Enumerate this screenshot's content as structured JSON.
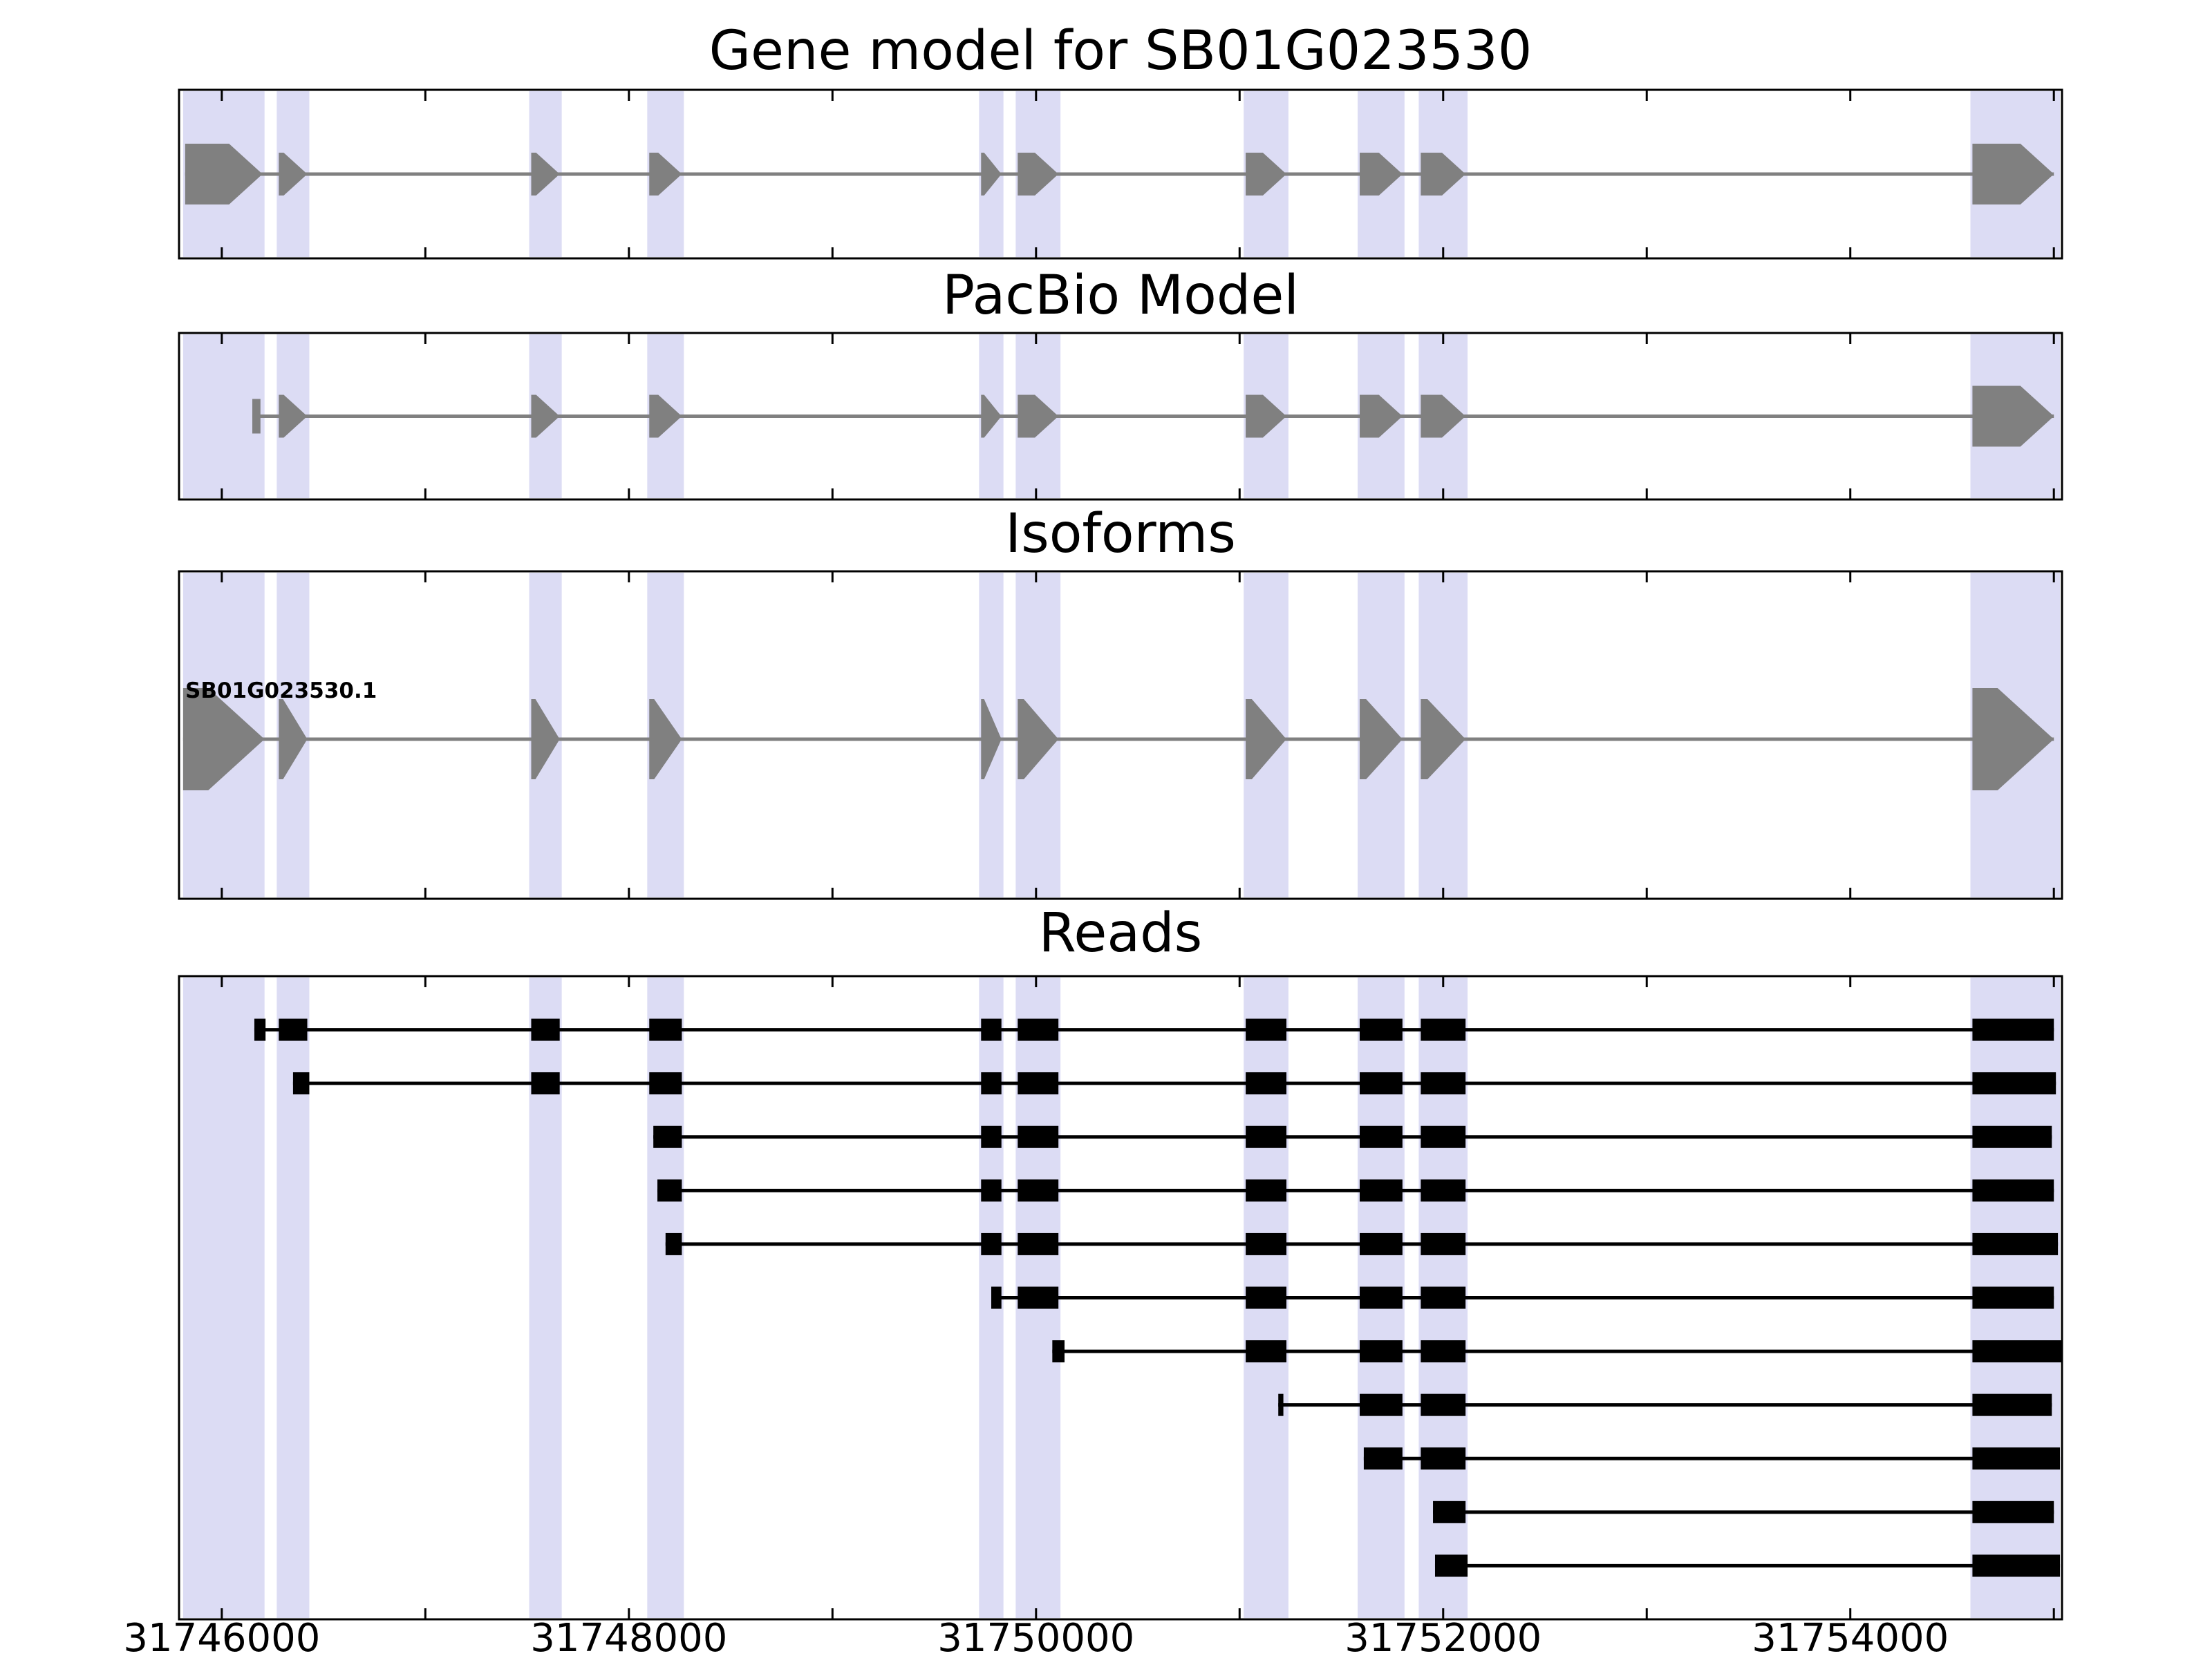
{
  "chart_data": {
    "type": "gene-model-tracks",
    "title": "Gene model for SB01G023530",
    "xlabel": "",
    "strand": "+",
    "axis": {
      "xmin": 31745790,
      "xmax": 31755040,
      "tick_values": [
        31746000,
        31748000,
        31750000,
        31752000,
        31754000
      ],
      "tick_labels": [
        "31746000",
        "31748000",
        "31750000",
        "31752000",
        "31754000"
      ],
      "minor_tick_step": 1000
    },
    "colors": {
      "highlight": "#dcdcf4",
      "exon": "#808080",
      "intron_line": "#808080",
      "read": "#000000",
      "border": "#000000",
      "background": "#ffffff"
    },
    "panels": [
      {
        "title": "Gene model for SB01G023530"
      },
      {
        "title": "PacBio Model"
      },
      {
        "title": "Isoforms",
        "label": "SB01G023530.1"
      },
      {
        "title": "Reads"
      }
    ],
    "highlights": [
      [
        31745810,
        31746210
      ],
      [
        31746270,
        31746430
      ],
      [
        31747510,
        31747670
      ],
      [
        31748090,
        31748270
      ],
      [
        31749720,
        31749840
      ],
      [
        31749900,
        31750120
      ],
      [
        31751020,
        31751240
      ],
      [
        31751580,
        31751810
      ],
      [
        31751880,
        31752120
      ],
      [
        31754590,
        31755030
      ]
    ],
    "gene_exons": [
      [
        31745820,
        31746200,
        1
      ],
      [
        31746280,
        31746420,
        0
      ],
      [
        31747520,
        31747660,
        0
      ],
      [
        31748100,
        31748260,
        0
      ],
      [
        31749730,
        31749830,
        0
      ],
      [
        31749910,
        31750110,
        0
      ],
      [
        31751030,
        31751230,
        0
      ],
      [
        31751590,
        31751800,
        0
      ],
      [
        31751890,
        31752110,
        0
      ],
      [
        31754600,
        31755000,
        1
      ]
    ],
    "pacbio_exons": [
      [
        31746150,
        31746190,
        2
      ],
      [
        31746280,
        31746420,
        0
      ],
      [
        31747520,
        31747660,
        0
      ],
      [
        31748100,
        31748260,
        0
      ],
      [
        31749730,
        31749830,
        0
      ],
      [
        31749910,
        31750110,
        0
      ],
      [
        31751030,
        31751230,
        0
      ],
      [
        31751590,
        31751800,
        0
      ],
      [
        31751890,
        31752110,
        0
      ],
      [
        31754600,
        31755000,
        1
      ]
    ],
    "isoform_exons": [
      [
        31745810,
        31746210,
        1
      ],
      [
        31746280,
        31746420,
        0
      ],
      [
        31747520,
        31747660,
        0
      ],
      [
        31748100,
        31748260,
        0
      ],
      [
        31749730,
        31749830,
        0
      ],
      [
        31749910,
        31750110,
        0
      ],
      [
        31751030,
        31751230,
        0
      ],
      [
        31751590,
        31751800,
        0
      ],
      [
        31751890,
        31752110,
        0
      ],
      [
        31754600,
        31755000,
        1
      ]
    ],
    "reads": [
      {
        "blocks": [
          [
            31746160,
            31746215
          ],
          [
            31746280,
            31746420
          ],
          [
            31747520,
            31747660
          ],
          [
            31748100,
            31748260
          ],
          [
            31749730,
            31749830
          ],
          [
            31749910,
            31750110
          ],
          [
            31751030,
            31751230
          ],
          [
            31751590,
            31751800
          ],
          [
            31751890,
            31752110
          ],
          [
            31754600,
            31755000
          ]
        ]
      },
      {
        "blocks": [
          [
            31746350,
            31746430
          ],
          [
            31747520,
            31747660
          ],
          [
            31748100,
            31748260
          ],
          [
            31749730,
            31749830
          ],
          [
            31749910,
            31750110
          ],
          [
            31751030,
            31751230
          ],
          [
            31751590,
            31751800
          ],
          [
            31751890,
            31752110
          ],
          [
            31754600,
            31755010
          ]
        ]
      },
      {
        "blocks": [
          [
            31748120,
            31748260
          ],
          [
            31749730,
            31749830
          ],
          [
            31749910,
            31750110
          ],
          [
            31751030,
            31751230
          ],
          [
            31751590,
            31751800
          ],
          [
            31751890,
            31752110
          ],
          [
            31754600,
            31754990
          ]
        ]
      },
      {
        "blocks": [
          [
            31748140,
            31748260
          ],
          [
            31749730,
            31749830
          ],
          [
            31749910,
            31750110
          ],
          [
            31751030,
            31751230
          ],
          [
            31751590,
            31751800
          ],
          [
            31751890,
            31752110
          ],
          [
            31754600,
            31755000
          ]
        ]
      },
      {
        "blocks": [
          [
            31748180,
            31748260
          ],
          [
            31749730,
            31749830
          ],
          [
            31749910,
            31750110
          ],
          [
            31751030,
            31751230
          ],
          [
            31751590,
            31751800
          ],
          [
            31751890,
            31752110
          ],
          [
            31754600,
            31755020
          ]
        ]
      },
      {
        "blocks": [
          [
            31749780,
            31749830
          ],
          [
            31749910,
            31750110
          ],
          [
            31751030,
            31751230
          ],
          [
            31751590,
            31751800
          ],
          [
            31751890,
            31752110
          ],
          [
            31754600,
            31755000
          ]
        ]
      },
      {
        "blocks": [
          [
            31750080,
            31750140
          ],
          [
            31751030,
            31751230
          ],
          [
            31751590,
            31751800
          ],
          [
            31751890,
            31752110
          ],
          [
            31754600,
            31755040
          ]
        ]
      },
      {
        "blocks": [
          [
            31751190,
            31751215
          ],
          [
            31751590,
            31751800
          ],
          [
            31751890,
            31752110
          ],
          [
            31754600,
            31754990
          ]
        ]
      },
      {
        "blocks": [
          [
            31751610,
            31751800
          ],
          [
            31751890,
            31752110
          ],
          [
            31754600,
            31755030
          ]
        ]
      },
      {
        "blocks": [
          [
            31751950,
            31752110
          ],
          [
            31754600,
            31755000
          ]
        ]
      },
      {
        "blocks": [
          [
            31751960,
            31752120
          ],
          [
            31754600,
            31755030
          ]
        ]
      }
    ]
  }
}
